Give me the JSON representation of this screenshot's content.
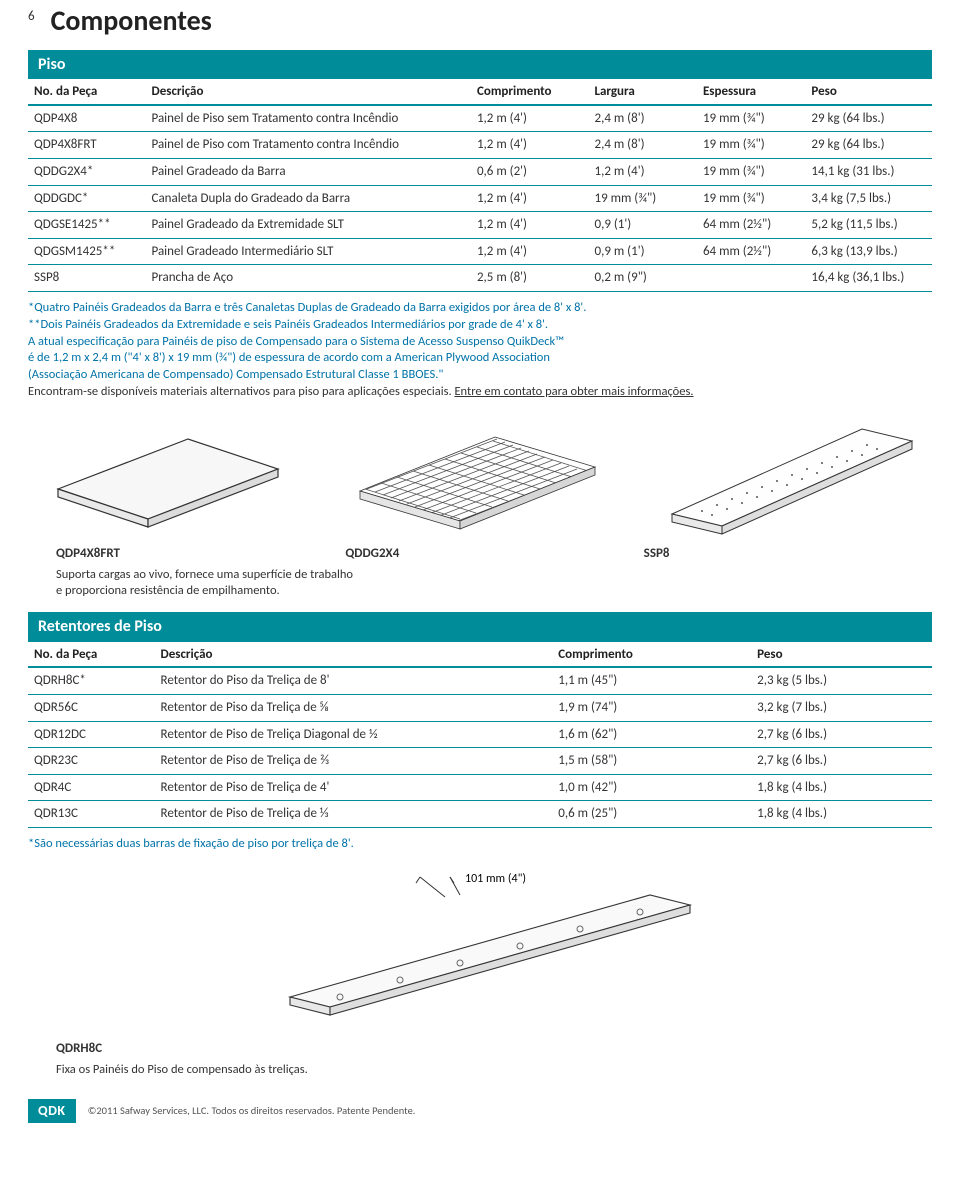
{
  "page_number": "6",
  "page_title": "Componentes",
  "colors": {
    "brand": "#008c99",
    "link_blue": "#0073a8",
    "text": "#333333",
    "rule": "#008c99"
  },
  "section1": {
    "title": "Piso",
    "headers": [
      "No. da Peça",
      "Descrição",
      "Comprimento",
      "Largura",
      "Espessura",
      "Peso"
    ],
    "rows": [
      [
        "QDP4X8",
        "Painel de Piso sem Tratamento contra Incêndio",
        "1,2 m (4')",
        "2,4 m (8')",
        "19 mm (¾\")",
        "29 kg (64 lbs.)"
      ],
      [
        "QDP4X8FRT",
        "Painel de Piso com Tratamento contra Incêndio",
        "1,2 m (4')",
        "2,4 m (8')",
        "19 mm (¾\")",
        "29 kg (64 lbs.)"
      ],
      [
        "QDDG2X4*",
        "Painel Gradeado da Barra",
        "0,6 m (2')",
        "1,2 m (4')",
        "19 mm (¾\")",
        "14,1 kg (31 lbs.)"
      ],
      [
        "QDDGDC*",
        "Canaleta Dupla do Gradeado da Barra",
        "1,2 m (4')",
        "19 mm (¾\")",
        "19 mm (¾\")",
        "3,4 kg (7,5 lbs.)"
      ],
      [
        "QDGSE1425**",
        "Painel Gradeado da Extremidade SLT",
        "1,2 m (4')",
        "0,9 (1')",
        "64 mm (2½\")",
        "5,2 kg (11,5 lbs.)"
      ],
      [
        "QDGSM1425**",
        "Painel Gradeado Intermediário SLT",
        "1,2 m (4')",
        "0,9 m (1')",
        "64 mm (2½\")",
        "6,3 kg (13,9 lbs.)"
      ],
      [
        "SSP8",
        "Prancha de Aço",
        "2,5 m (8')",
        "0,2 m (9\")",
        "",
        "16,4 kg (36,1 lbs.)"
      ]
    ],
    "note_lines": [
      "*Quatro Painéis Gradeados da Barra e três Canaletas Duplas de Gradeado da Barra exigidos por área de 8' x 8'.",
      "**Dois Painéis Gradeados da Extremidade e seis Painéis Gradeados Intermediários por grade de 4' x 8'.",
      "A atual especificação para Painéis de piso de Compensado para o Sistema de Acesso Suspenso QuikDeck™",
      "é de  1,2 m x 2,4 m (\"4' x 8') x 19 mm (¾\") de espessura de acordo com a American Plywood Association",
      "(Associação Americana de Compensado) Compensado Estrutural Classe 1 BBOES.\""
    ],
    "note_final_prefix": "Encontram-se disponíveis materiais alternativos para piso para aplicações especiais. ",
    "note_final_link": "Entre em contato para obter mais informações.",
    "illus_labels": [
      "QDP4X8FRT",
      "QDDG2X4",
      "SSP8"
    ],
    "illus_caption_l1": "Suporta cargas ao vivo, fornece uma superfície de trabalho",
    "illus_caption_l2": "e proporciona resistência de empilhamento."
  },
  "section2": {
    "title": "Retentores de Piso",
    "headers": [
      "No. da Peça",
      "Descrição",
      "Comprimento",
      "Peso"
    ],
    "rows": [
      [
        "QDRH8C*",
        "Retentor do Piso da Treliça de 8'",
        "1,1 m (45\")",
        "2,3 kg (5 lbs.)"
      ],
      [
        "QDR56C",
        "Retentor de Piso da Treliça de ⅝",
        "1,9 m (74\")",
        "3,2 kg (7 lbs.)"
      ],
      [
        "QDR12DC",
        "Retentor de Piso de Treliça Diagonal de ½",
        "1,6 m (62\")",
        "2,7 kg (6 lbs.)"
      ],
      [
        "QDR23C",
        "Retentor de Piso de Treliça de ⅔",
        "1,5 m (58\")",
        "2,7 kg (6 lbs.)"
      ],
      [
        "QDR4C",
        "Retentor de Piso de Treliça de 4'",
        "1,0 m (42\")",
        "1,8 kg (4 lbs.)"
      ],
      [
        "QDR13C",
        "Retentor de Piso de Treliça de ⅓",
        "0,6 m (25\")",
        "1,8 kg (4 lbs.)"
      ]
    ],
    "note": "*São necessárias duas barras de fixação de piso por treliça de 8'.",
    "dim_label": "101 mm (4\")",
    "illus_label": "QDRH8C",
    "illus_caption": "Fixa os Painéis do Piso de compensado às treliças."
  },
  "footer": {
    "badge": "QDK",
    "text": "©2011 Safway Services, LLC.  Todos os direitos reservados.  Patente Pendente."
  }
}
